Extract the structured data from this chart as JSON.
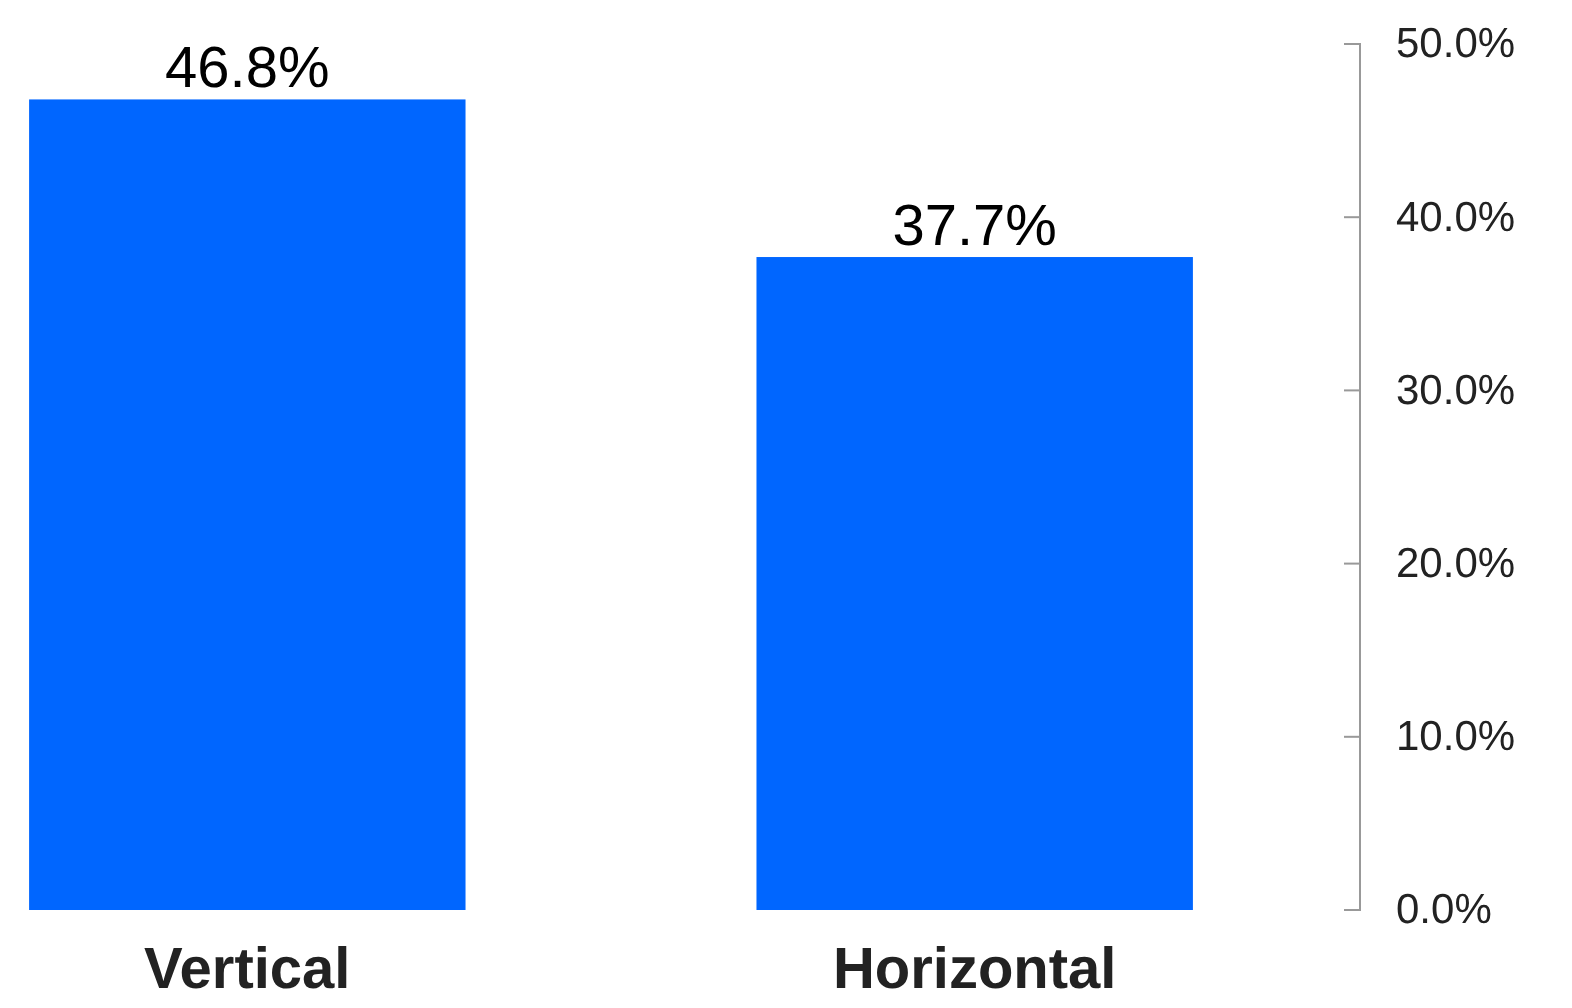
{
  "chart_data": {
    "type": "bar",
    "categories": [
      "Vertical",
      "Horizontal"
    ],
    "values": [
      46.8,
      37.7
    ],
    "color": "#0066ff",
    "value_labels": [
      "46.8%",
      "37.7%"
    ],
    "ylim": [
      0,
      50
    ],
    "yticks": [
      {
        "value": 0,
        "label": "0.0%"
      },
      {
        "value": 10,
        "label": "10.0%"
      },
      {
        "value": 20,
        "label": "20.0%"
      },
      {
        "value": 30,
        "label": "30.0%"
      },
      {
        "value": 40,
        "label": "40.0%"
      },
      {
        "value": 50,
        "label": "50.0%"
      }
    ],
    "grid": false
  }
}
